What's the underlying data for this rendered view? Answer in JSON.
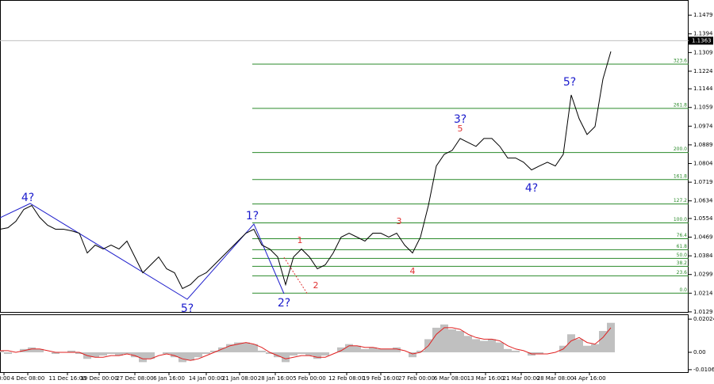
{
  "chart_data": [
    {
      "type": "line",
      "x": [
        0,
        1,
        2,
        3,
        4,
        5,
        6,
        7,
        8,
        9,
        10,
        11,
        12,
        13,
        14,
        15,
        16,
        17,
        18,
        19,
        20,
        21,
        22,
        23,
        24,
        25,
        26,
        27,
        28,
        29,
        30,
        31,
        32,
        33,
        34,
        35,
        36,
        37,
        38,
        39,
        40,
        41,
        42,
        43,
        44,
        45,
        46,
        47,
        48,
        49,
        50,
        51,
        52,
        53,
        54,
        55,
        56,
        57,
        58,
        59,
        60,
        61,
        62,
        63,
        64,
        65,
        66,
        67,
        68,
        69,
        70,
        71,
        72,
        73,
        74,
        75,
        76,
        77
      ],
      "series": [
        {
          "color": "#000000",
          "values": [
            1.0505,
            1.0512,
            1.0541,
            1.0595,
            1.0613,
            1.0559,
            1.0523,
            1.0505,
            1.0505,
            1.0498,
            1.0487,
            1.0397,
            1.0433,
            1.0415,
            1.0433,
            1.0415,
            1.0451,
            1.0379,
            1.0307,
            1.0343,
            1.0379,
            1.0325,
            1.0307,
            1.0235,
            1.0253,
            1.0289,
            1.0307,
            1.0343,
            1.0379,
            1.0415,
            1.0451,
            1.0487,
            1.0505,
            1.0433,
            1.0415,
            1.0379,
            1.0253,
            1.0379,
            1.0415,
            1.0379,
            1.0325,
            1.0343,
            1.0397,
            1.0469,
            1.0487,
            1.0469,
            1.0451,
            1.0487,
            1.0487,
            1.0469,
            1.0487,
            1.0433,
            1.0397,
            1.0469,
            1.0613,
            1.0793,
            1.0846,
            1.0864,
            1.0918,
            1.09,
            1.0882,
            1.0918,
            1.0918,
            1.0882,
            1.0829,
            1.0829,
            1.081,
            1.0775,
            1.0793,
            1.081,
            1.0793,
            1.0846,
            1.1116,
            1.1008,
            1.0936,
            1.0972,
            1.1188,
            1.1314
          ]
        }
      ],
      "xlim": [
        0,
        86.8
      ],
      "xticks": [
        {
          "value": 0.5,
          "label": "0:00"
        },
        {
          "value": 3.5,
          "label": "4 Dec 08:00"
        },
        {
          "value": 8.5,
          "label": "11 Dec 16:00"
        },
        {
          "value": 12.5,
          "label": "19 Dec 00:00"
        },
        {
          "value": 17,
          "label": "27 Dec 08:00"
        },
        {
          "value": 21.3,
          "label": "6 Jan 16:00"
        },
        {
          "value": 26,
          "label": "14 Jan 00:00"
        },
        {
          "value": 30.2,
          "label": "21 Jan 08:00"
        },
        {
          "value": 34.7,
          "label": "28 Jan 16:00"
        },
        {
          "value": 39,
          "label": "5 Feb 00:00"
        },
        {
          "value": 43.7,
          "label": "12 Feb 08:00"
        },
        {
          "value": 48,
          "label": "19 Feb 16:00"
        },
        {
          "value": 52.5,
          "label": "27 Feb 00:00"
        },
        {
          "value": 56.8,
          "label": "6 Mar 08:00"
        },
        {
          "value": 61.2,
          "label": "13 Mar 16:00"
        },
        {
          "value": 65.7,
          "label": "21 Mar 00:00"
        },
        {
          "value": 70,
          "label": "28 Mar 08:00"
        },
        {
          "value": 74.3,
          "label": "4 Apr 16:00"
        }
      ],
      "ylim": [
        1.0125,
        1.1548
      ],
      "yticks": [
        1.1479,
        1.1394,
        1.1309,
        1.1224,
        1.1144,
        1.1059,
        1.0974,
        1.0889,
        1.0804,
        1.0719,
        1.0634,
        1.0554,
        1.0469,
        1.0384,
        1.0299,
        1.0214,
        1.0129
      ],
      "current_price": 1.1363,
      "fib_levels": [
        {
          "value": 1.0214,
          "label": "0.0"
        },
        {
          "value": 1.0293,
          "label": "23.6"
        },
        {
          "value": 1.0336,
          "label": "38.2"
        },
        {
          "value": 1.0372,
          "label": "50.0"
        },
        {
          "value": 1.0412,
          "label": "61.8"
        },
        {
          "value": 1.0462,
          "label": "76.4"
        },
        {
          "value": 1.0534,
          "label": "100.0"
        },
        {
          "value": 1.062,
          "label": "127.2"
        },
        {
          "value": 1.0731,
          "label": "161.8"
        },
        {
          "value": 1.0854,
          "label": "200.0"
        },
        {
          "value": 1.1055,
          "label": "261.8"
        },
        {
          "value": 1.1256,
          "label": "323.6"
        }
      ],
      "fib_color": "#2a8a2a",
      "annotations": [
        {
          "text": "4?",
          "color": "#1a1acc"
        },
        {
          "text": "1?",
          "color": "#1a1acc"
        },
        {
          "text": "2?",
          "color": "#1a1acc"
        },
        {
          "text": "5?",
          "color": "#1a1acc"
        },
        {
          "text": "3?",
          "color": "#1a1acc"
        },
        {
          "text": "4?",
          "color": "#1a1acc"
        },
        {
          "text": "5?",
          "color": "#1a1acc"
        },
        {
          "text": "1",
          "color": "#e03030"
        },
        {
          "text": "2",
          "color": "#e03030"
        },
        {
          "text": "3",
          "color": "#e03030"
        },
        {
          "text": "4",
          "color": "#e03030"
        },
        {
          "text": "5",
          "color": "#e03030"
        }
      ]
    },
    {
      "type": "bar",
      "series": [
        {
          "kind": "bar",
          "color": "#c0c0c0",
          "values": [
            0.001,
            -0.001,
            0,
            0.002,
            0.003,
            0.002,
            0,
            -0.001,
            0,
            0.001,
            -0.001,
            -0.004,
            -0.003,
            -0.002,
            -0.001,
            -0.002,
            -0.001,
            -0.003,
            -0.006,
            -0.004,
            0,
            -0.001,
            -0.003,
            -0.006,
            -0.005,
            -0.003,
            -0.001,
            0.001,
            0.003,
            0.005,
            0.006,
            0.006,
            0.005,
            0.001,
            -0.001,
            -0.003,
            -0.006,
            -0.002,
            -0.001,
            -0.002,
            -0.004,
            -0.002,
            0,
            0.003,
            0.005,
            0.004,
            0.002,
            0.003,
            0.002,
            0.002,
            0.003,
            0,
            -0.003,
            0.001,
            0.008,
            0.015,
            0.017,
            0.014,
            0.013,
            0.01,
            0.008,
            0.007,
            0.008,
            0.006,
            0.002,
            0.001,
            0,
            -0.002,
            -0.001,
            0,
            0,
            0.004,
            0.011,
            0.008,
            0.004,
            0.005,
            0.013,
            0.018
          ]
        },
        {
          "kind": "line",
          "color": "#e02020",
          "values": [
            0.001,
            0.001,
            0,
            0.001,
            0.002,
            0.002,
            0.001,
            0,
            0,
            0,
            0,
            -0.002,
            -0.003,
            -0.003,
            -0.002,
            -0.002,
            -0.001,
            -0.002,
            -0.004,
            -0.004,
            -0.002,
            -0.001,
            -0.002,
            -0.004,
            -0.005,
            -0.004,
            -0.002,
            0,
            0.002,
            0.004,
            0.005,
            0.006,
            0.005,
            0.003,
            0,
            -0.002,
            -0.004,
            -0.003,
            -0.002,
            -0.002,
            -0.003,
            -0.003,
            -0.001,
            0.001,
            0.004,
            0.004,
            0.003,
            0.003,
            0.002,
            0.002,
            0.002,
            0.001,
            -0.001,
            0,
            0.004,
            0.011,
            0.015,
            0.015,
            0.014,
            0.011,
            0.009,
            0.008,
            0.008,
            0.007,
            0.004,
            0.002,
            0.001,
            -0.001,
            -0.001,
            -0.001,
            0,
            0.002,
            0.007,
            0.009,
            0.006,
            0.005,
            0.009,
            0.015
          ]
        }
      ],
      "ylim": [
        -0.0121,
        0.0227
      ],
      "yticks": [
        0.02024,
        {
          "value": 0,
          "label": "0.00"
        },
        -0.0106
      ]
    }
  ]
}
